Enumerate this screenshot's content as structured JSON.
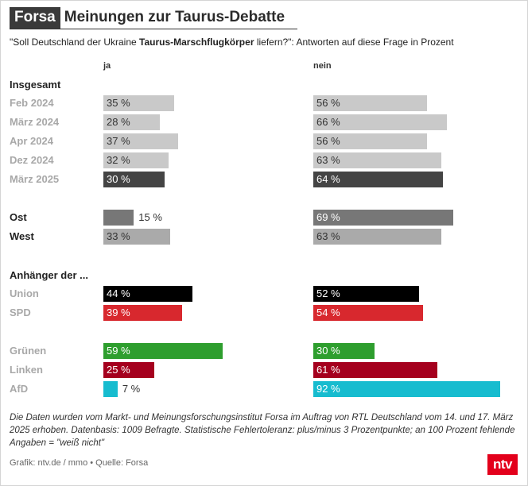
{
  "header": {
    "brand": "Forsa",
    "title": "Meinungen zur Taurus-Debatte",
    "subtitle_pre": "\"Soll Deutschland der Ukraine ",
    "subtitle_bold": "Taurus-Marschflugkörper",
    "subtitle_post": " liefern?\": Antworten auf diese Frage in Prozent"
  },
  "chart_data": {
    "type": "bar",
    "columns": [
      "ja",
      "nein"
    ],
    "scale_max": 100,
    "groups": [
      {
        "heading": "Insgesamt",
        "rows": [
          {
            "label": "Feb 2024",
            "ja": 35,
            "nein": 56,
            "ja_color": "#c9c9c9",
            "nein_color": "#c9c9c9",
            "ja_text": "35 %",
            "nein_text": "56 %"
          },
          {
            "label": "März 2024",
            "ja": 28,
            "nein": 66,
            "ja_color": "#c9c9c9",
            "nein_color": "#c9c9c9",
            "ja_text": "28 %",
            "nein_text": "66 %"
          },
          {
            "label": "Apr 2024",
            "ja": 37,
            "nein": 56,
            "ja_color": "#c9c9c9",
            "nein_color": "#c9c9c9",
            "ja_text": "37 %",
            "nein_text": "56 %"
          },
          {
            "label": "Dez 2024",
            "ja": 32,
            "nein": 63,
            "ja_color": "#c9c9c9",
            "nein_color": "#c9c9c9",
            "ja_text": "32 %",
            "nein_text": "63 %"
          },
          {
            "label": "März 2025",
            "ja": 30,
            "nein": 64,
            "ja_color": "#444444",
            "nein_color": "#444444",
            "ja_text": "30 %",
            "nein_text": "64 %"
          }
        ]
      },
      {
        "heading": "",
        "rows": [
          {
            "label": "Ost",
            "ja": 15,
            "nein": 69,
            "ja_color": "#777777",
            "nein_color": "#777777",
            "ja_text": "15 %",
            "nein_text": "69 %",
            "dark_label": true
          },
          {
            "label": "West",
            "ja": 33,
            "nein": 63,
            "ja_color": "#aaaaaa",
            "nein_color": "#aaaaaa",
            "ja_text": "33 %",
            "nein_text": "63 %",
            "dark_label": true
          }
        ]
      },
      {
        "heading": "Anhänger der ...",
        "rows": [
          {
            "label": "Union",
            "ja": 44,
            "nein": 52,
            "ja_color": "#000000",
            "nein_color": "#000000",
            "ja_text": "44 %",
            "nein_text": "52 %"
          },
          {
            "label": "SPD",
            "ja": 39,
            "nein": 54,
            "ja_color": "#d8282e",
            "nein_color": "#d8282e",
            "ja_text": "39 %",
            "nein_text": "54 %"
          }
        ]
      },
      {
        "heading": "",
        "rows": [
          {
            "label": "Grünen",
            "ja": 59,
            "nein": 30,
            "ja_color": "#2e9e2e",
            "nein_color": "#2e9e2e",
            "ja_text": "59 %",
            "nein_text": "30 %"
          },
          {
            "label": "Linken",
            "ja": 25,
            "nein": 61,
            "ja_color": "#a5001e",
            "nein_color": "#a5001e",
            "ja_text": "25 %",
            "nein_text": "61 %"
          },
          {
            "label": "AfD",
            "ja": 7,
            "nein": 92,
            "ja_color": "#17bccf",
            "nein_color": "#17bccf",
            "ja_text": "7 %",
            "nein_text": "92 %"
          }
        ]
      }
    ]
  },
  "footer": {
    "note": "Die Daten wurden vom Markt- und Meinungsforschungsinstitut Forsa im Auftrag von RTL Deutschland vom 14. und 17. März 2025 erhoben. Datenbasis: 1009 Befragte. Statistische Fehlertoleranz: plus/minus 3 Prozentpunkte; an 100 Prozent fehlende Angaben = \"weiß nicht\"",
    "credit": "Grafik: ntv.de / mmo • Quelle: Forsa",
    "logo_text": "ntv"
  }
}
